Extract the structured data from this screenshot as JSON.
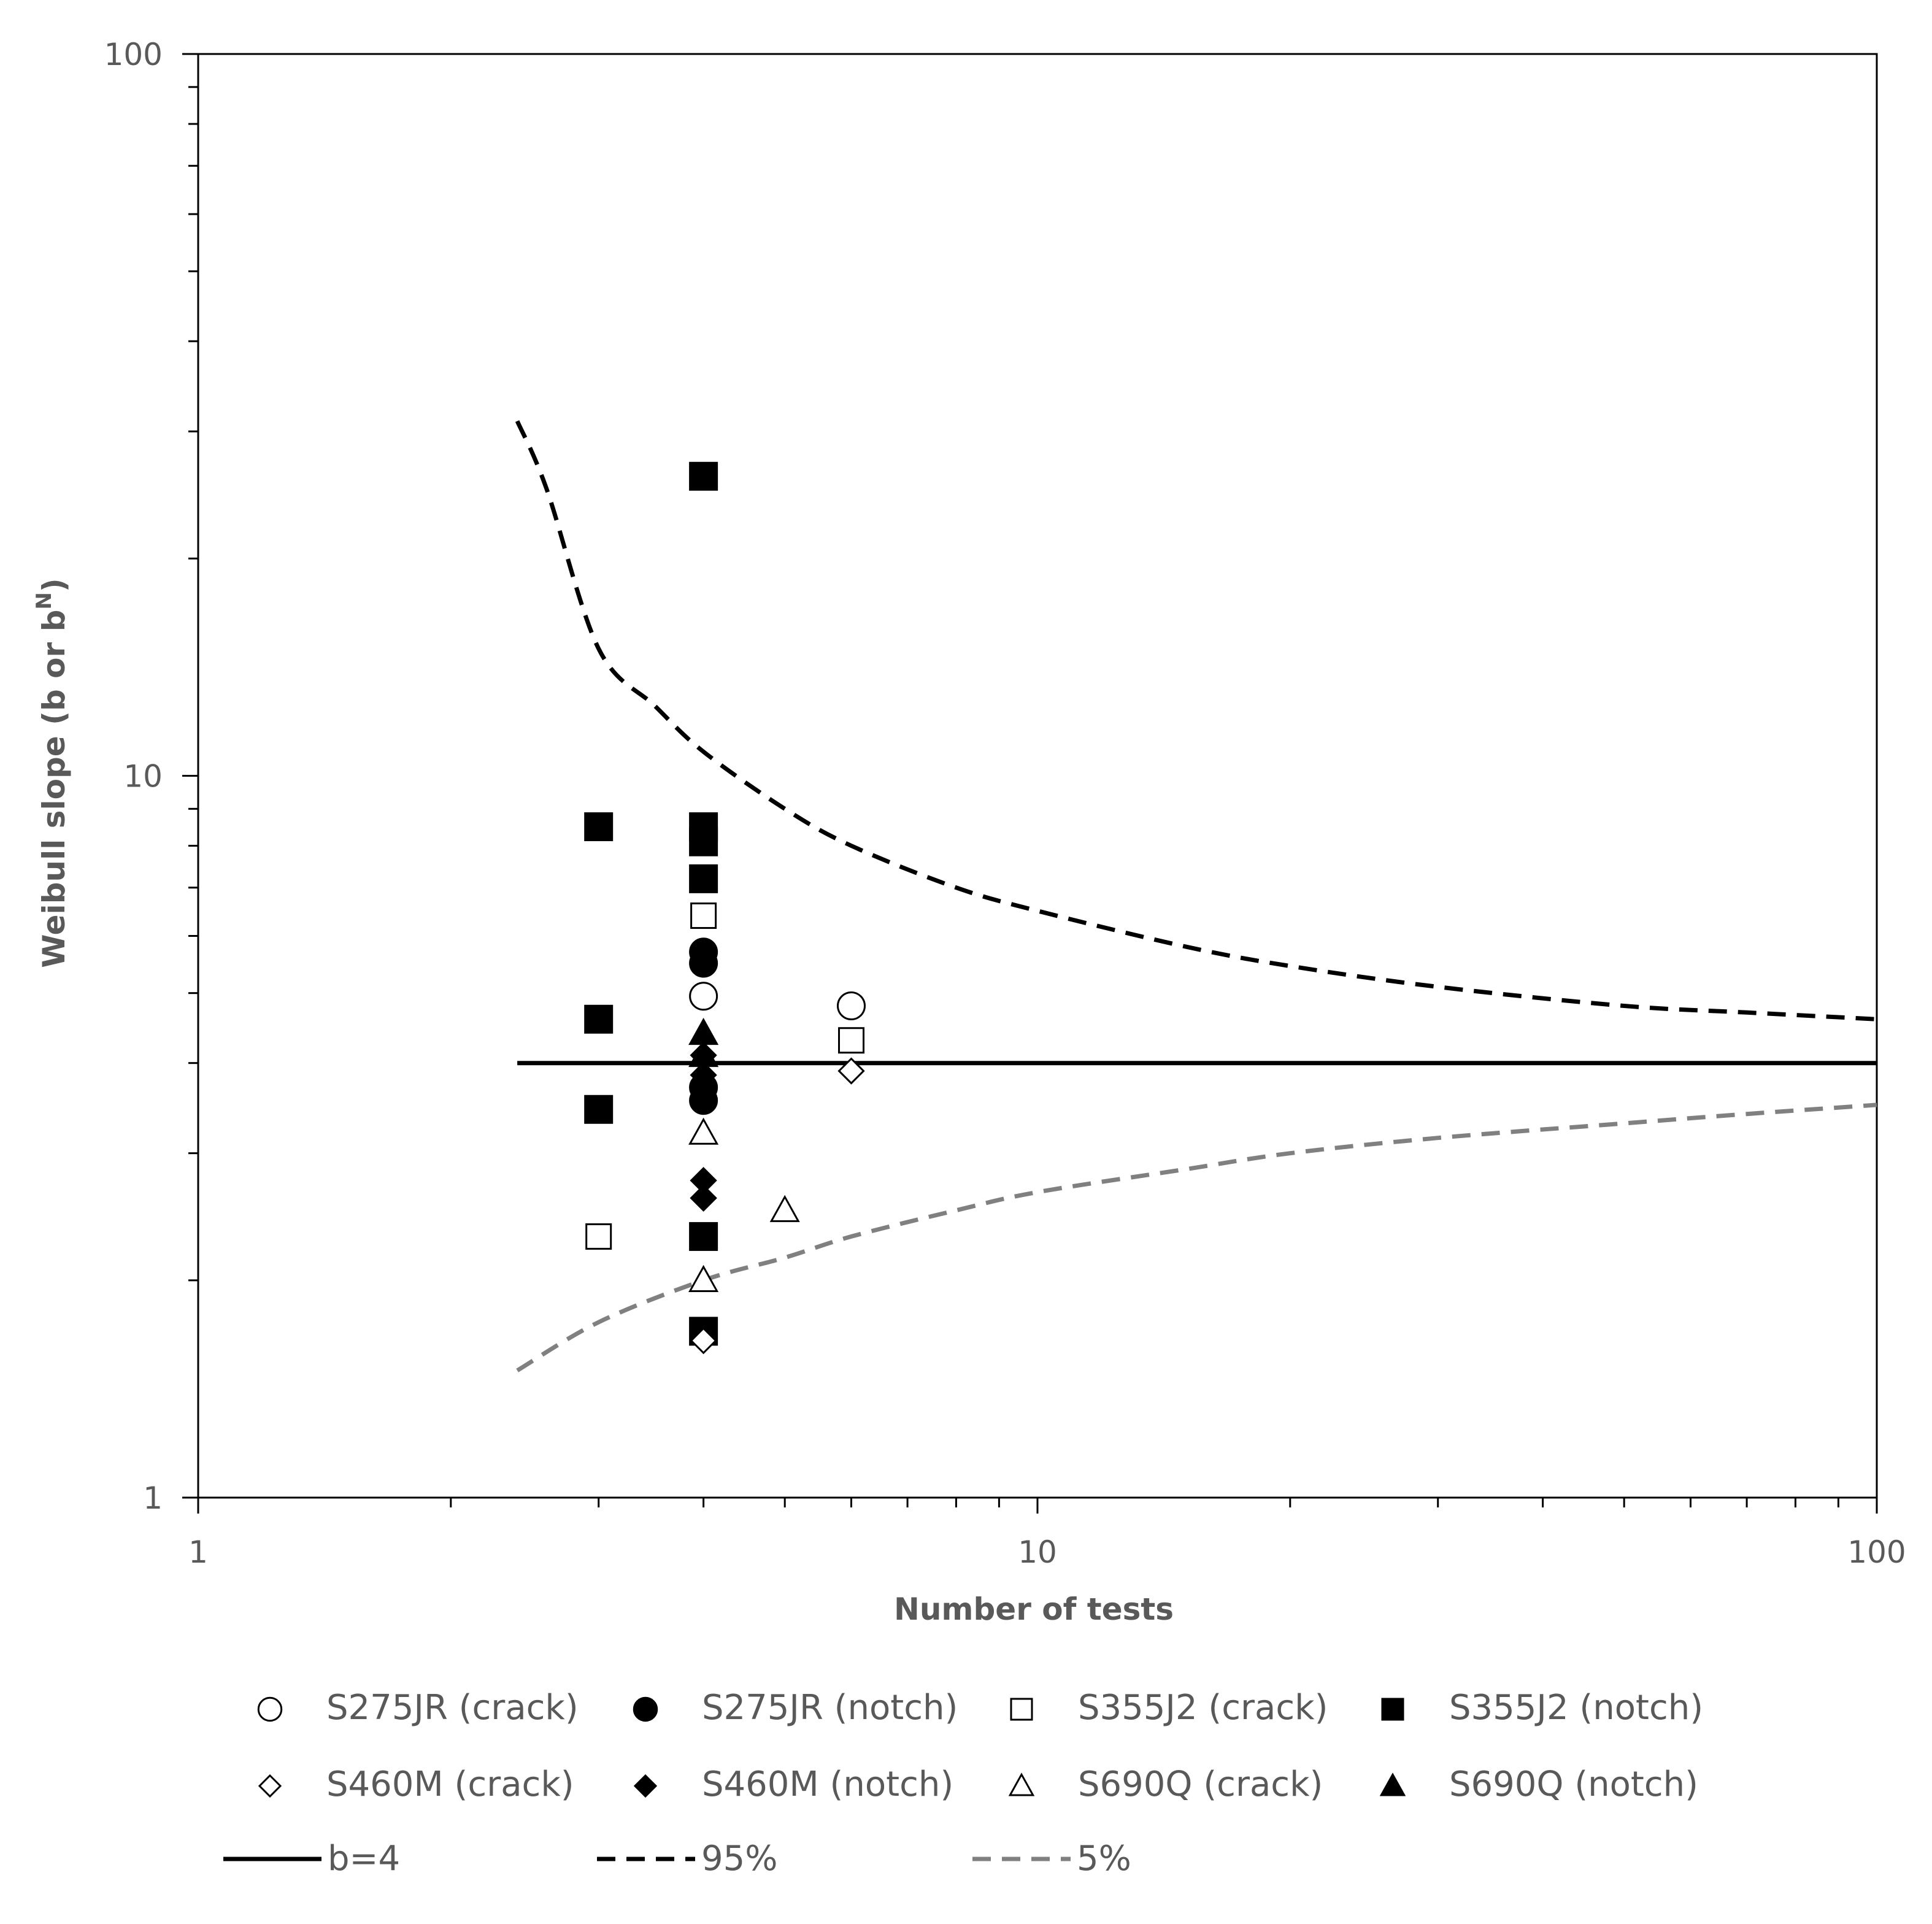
{
  "chart_data": {
    "type": "scatter",
    "x_scale": "log",
    "y_scale": "log",
    "xlim": [
      1,
      100
    ],
    "ylim": [
      1,
      100
    ],
    "xlabel": "Number of tests",
    "ylabel_main": "Weibull slope (b or b",
    "ylabel_sup": "N",
    "ylabel_end": ")",
    "x_ticks": [
      {
        "value": 1,
        "label": "1"
      },
      {
        "value": 10,
        "label": "10"
      },
      {
        "value": 100,
        "label": "100"
      }
    ],
    "y_ticks": [
      {
        "value": 1,
        "label": "1"
      },
      {
        "value": 10,
        "label": "10"
      },
      {
        "value": 100,
        "label": "100"
      }
    ],
    "series": [
      {
        "name": "S275JR (crack)",
        "marker": "circle",
        "filled": false,
        "points": [
          [
            4,
            4.95
          ],
          [
            6,
            4.8
          ]
        ]
      },
      {
        "name": "S275JR (notch)",
        "marker": "circle",
        "filled": true,
        "points": [
          [
            4,
            5.7
          ],
          [
            4,
            5.5
          ],
          [
            4,
            3.7
          ],
          [
            4,
            3.55
          ]
        ]
      },
      {
        "name": "S355J2 (crack)",
        "marker": "square",
        "filled": false,
        "points": [
          [
            3,
            2.3
          ],
          [
            4,
            6.4
          ],
          [
            6,
            4.3
          ]
        ]
      },
      {
        "name": "S355J2 (notch)",
        "marker": "square",
        "filled": true,
        "points": [
          [
            3,
            8.5
          ],
          [
            3,
            4.6
          ],
          [
            3,
            3.45
          ],
          [
            4,
            26
          ],
          [
            4,
            8.5
          ],
          [
            4,
            8.1
          ],
          [
            4,
            7.2
          ],
          [
            4,
            2.3
          ],
          [
            4,
            1.7
          ]
        ]
      },
      {
        "name": "S460M (crack)",
        "marker": "diamond",
        "filled": false,
        "points": [
          [
            6,
            3.9
          ],
          [
            4,
            2.6
          ],
          [
            4,
            1.65
          ]
        ]
      },
      {
        "name": "S460M (notch)",
        "marker": "diamond",
        "filled": true,
        "points": [
          [
            4,
            4.1
          ],
          [
            4,
            3.85
          ],
          [
            4,
            2.75
          ],
          [
            4,
            2.6
          ]
        ]
      },
      {
        "name": "S690Q (crack)",
        "marker": "triangle",
        "filled": false,
        "points": [
          [
            4,
            3.2
          ],
          [
            5,
            2.5
          ],
          [
            4,
            2.0
          ]
        ]
      },
      {
        "name": "S690Q (notch)",
        "marker": "triangle",
        "filled": true,
        "points": [
          [
            4,
            4.4
          ],
          [
            4,
            4.1
          ]
        ]
      }
    ],
    "lines": [
      {
        "name": "b=4",
        "style": "solid",
        "color": "#000000",
        "points": [
          [
            2.4,
            4
          ],
          [
            100,
            4
          ]
        ]
      },
      {
        "name": "95%",
        "style": "dashed",
        "color": "#000000",
        "points": [
          [
            2.4,
            31
          ],
          [
            2.6,
            25
          ],
          [
            3,
            15
          ],
          [
            3.5,
            12.5
          ],
          [
            4,
            10.8
          ],
          [
            5,
            9
          ],
          [
            6,
            8
          ],
          [
            8,
            7
          ],
          [
            10,
            6.5
          ],
          [
            15,
            5.8
          ],
          [
            20,
            5.45
          ],
          [
            30,
            5.1
          ],
          [
            50,
            4.8
          ],
          [
            70,
            4.7
          ],
          [
            100,
            4.6
          ]
        ]
      },
      {
        "name": "5%",
        "style": "dashed",
        "color": "#808080",
        "points": [
          [
            2.4,
            1.5
          ],
          [
            3,
            1.75
          ],
          [
            4,
            2.0
          ],
          [
            5,
            2.15
          ],
          [
            6,
            2.3
          ],
          [
            8,
            2.5
          ],
          [
            10,
            2.65
          ],
          [
            15,
            2.85
          ],
          [
            20,
            3.0
          ],
          [
            30,
            3.15
          ],
          [
            50,
            3.3
          ],
          [
            70,
            3.4
          ],
          [
            100,
            3.5
          ]
        ]
      }
    ],
    "legend": {
      "placement": "bottom",
      "rows": [
        [
          "S275JR (crack)",
          "S275JR (notch)",
          "S355J2 (crack)",
          "S355J2 (notch)"
        ],
        [
          "S460M (crack)",
          "S460M (notch)",
          "S690Q (crack)",
          "S690Q (notch)"
        ],
        [
          "b=4",
          "95%",
          "5%"
        ]
      ]
    }
  }
}
